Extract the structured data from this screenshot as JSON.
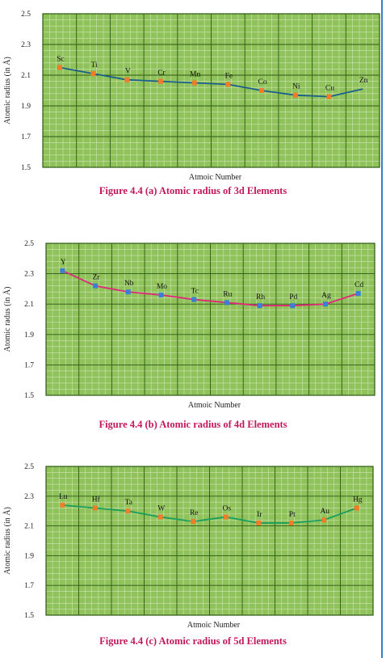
{
  "theme": {
    "plot_bg": "#8fc25a",
    "grid_major": "#2f5a14",
    "grid_minor": "#cfe4b4"
  },
  "chart_data": [
    {
      "type": "line",
      "caption": "Figure 4.4 (a) Atomic radius of 3d Elements",
      "xlabel": "Atmoic Number",
      "ylabel": "Atomic radius (in Å)",
      "ylim": [
        1.5,
        2.5
      ],
      "yticks": [
        "2.5",
        "2.3",
        "2.1",
        "1.9",
        "1.7",
        "1.5"
      ],
      "grid": true,
      "line_color": "#1a5e8c",
      "marker_color": "#f07c28",
      "categories": [
        "Sc",
        "Ti",
        "V",
        "Cr",
        "Mn",
        "Fe",
        "Co",
        "Ni",
        "Cu",
        "Zn"
      ],
      "values": [
        2.15,
        2.11,
        2.07,
        2.06,
        2.05,
        2.04,
        2.0,
        1.97,
        1.96,
        2.01
      ],
      "markers": [
        true,
        true,
        true,
        true,
        true,
        true,
        true,
        true,
        true,
        false
      ]
    },
    {
      "type": "line",
      "caption": "Figure 4.4 (b) Atomic radius of 4d Elements",
      "xlabel": "Atmoic Number",
      "ylabel": "Atomic radus (in Å)",
      "ylim": [
        1.5,
        2.5
      ],
      "yticks": [
        "2.5",
        "2.3",
        "2.1",
        "1.9",
        "1.7",
        "1.5"
      ],
      "grid": true,
      "line_color": "#e0287a",
      "marker_color": "#3a7fd5",
      "categories": [
        "Y",
        "Zr",
        "Nb",
        "Mo",
        "Tc",
        "Ru",
        "Rh",
        "Pd",
        "Ag",
        "Cd"
      ],
      "values": [
        2.32,
        2.22,
        2.18,
        2.16,
        2.13,
        2.11,
        2.09,
        2.09,
        2.1,
        2.17
      ],
      "markers": [
        true,
        true,
        true,
        true,
        true,
        true,
        true,
        true,
        true,
        true
      ]
    },
    {
      "type": "line",
      "caption": "Figure 4.4 (c) Atomic radius of 5d Elements",
      "xlabel": "Atmoic Number",
      "ylabel": "Atomic radius (in Å)",
      "ylim": [
        1.5,
        2.5
      ],
      "yticks": [
        "2.5",
        "2.3",
        "2.1",
        "1.9",
        "1.7",
        "1.5"
      ],
      "grid": true,
      "line_color": "#1a9e5c",
      "marker_color": "#f07c28",
      "categories": [
        "Lu",
        "Hf",
        "Ta",
        "W",
        "Re",
        "Os",
        "Ir",
        "Pt",
        "Au",
        "Hg"
      ],
      "values": [
        2.24,
        2.22,
        2.2,
        2.16,
        2.13,
        2.16,
        2.12,
        2.12,
        2.14,
        2.22
      ],
      "markers": [
        true,
        true,
        true,
        true,
        true,
        true,
        true,
        true,
        true,
        true
      ]
    }
  ]
}
